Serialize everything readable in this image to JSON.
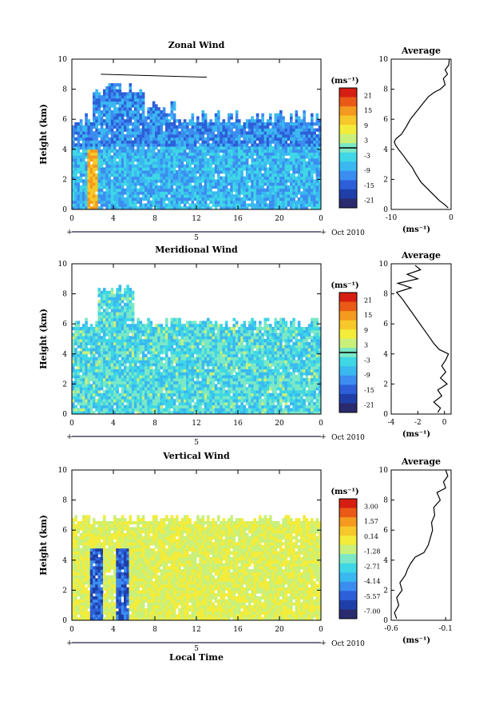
{
  "figure": {
    "x_axis_label": "Local Time",
    "date_label": "Oct 2010",
    "day_label": "5",
    "unit_label": "(ms⁻¹)",
    "y_axis_label": "Height (km)",
    "x_ticks": [
      "0",
      "4",
      "8",
      "12",
      "16",
      "20",
      "0"
    ],
    "y_ticks": [
      "0",
      "2",
      "4",
      "6",
      "8",
      "10"
    ]
  },
  "chart_data": [
    {
      "type": "heatmap",
      "title": "Zonal Wind",
      "ylabel": "Height (km)",
      "xlim": [
        0,
        24
      ],
      "ylim": [
        0,
        10
      ],
      "colorbar": {
        "unit": "(ms⁻¹)",
        "ticks": [
          "21",
          "15",
          "9",
          "3",
          "-3",
          "-9",
          "-15",
          "-21"
        ],
        "range": [
          -24,
          24
        ]
      },
      "profile": {
        "title": "Average",
        "xlabel": "(ms⁻¹)",
        "xlim": [
          -10,
          0
        ],
        "x_ticks": [
          "-10",
          "0"
        ],
        "points": [
          [
            -0.5,
            0.1
          ],
          [
            -1,
            0.3
          ],
          [
            -2,
            0.6
          ],
          [
            -3,
            1.0
          ],
          [
            -4,
            1.4
          ],
          [
            -5,
            1.8
          ],
          [
            -5.8,
            2.3
          ],
          [
            -6.5,
            2.8
          ],
          [
            -7.3,
            3.2
          ],
          [
            -8,
            3.6
          ],
          [
            -8.8,
            4.0
          ],
          [
            -9.3,
            4.3
          ],
          [
            -9.5,
            4.5
          ],
          [
            -9.2,
            4.7
          ],
          [
            -8.3,
            5.0
          ],
          [
            -7.5,
            5.5
          ],
          [
            -6.8,
            6.0
          ],
          [
            -5.8,
            6.5
          ],
          [
            -4.8,
            7.0
          ],
          [
            -3.8,
            7.5
          ],
          [
            -2.8,
            7.8
          ],
          [
            -1.8,
            8.0
          ],
          [
            -1.0,
            8.3
          ],
          [
            -1.3,
            8.7
          ],
          [
            -0.6,
            9.0
          ],
          [
            -1.0,
            9.3
          ],
          [
            -0.4,
            9.6
          ],
          [
            -0.3,
            10
          ]
        ]
      }
    },
    {
      "type": "heatmap",
      "title": "Meridional Wind",
      "ylabel": "Height (km)",
      "xlim": [
        0,
        24
      ],
      "ylim": [
        0,
        10
      ],
      "colorbar": {
        "unit": "(ms⁻¹)",
        "ticks": [
          "21",
          "15",
          "9",
          "3",
          "-3",
          "-9",
          "-15",
          "-21"
        ],
        "range": [
          -24,
          24
        ]
      },
      "profile": {
        "title": "Average",
        "xlabel": "(ms⁻¹)",
        "xlim": [
          -4,
          0.5
        ],
        "x_ticks": [
          "-4",
          "-2",
          "0"
        ],
        "points": [
          [
            -0.5,
            0.1
          ],
          [
            -0.3,
            0.4
          ],
          [
            -0.8,
            0.8
          ],
          [
            -0.2,
            1.2
          ],
          [
            -0.5,
            1.6
          ],
          [
            0.2,
            2.0
          ],
          [
            -0.3,
            2.4
          ],
          [
            0.1,
            2.8
          ],
          [
            -0.2,
            3.2
          ],
          [
            0.1,
            3.6
          ],
          [
            0.3,
            4.0
          ],
          [
            -0.4,
            4.3
          ],
          [
            -0.8,
            4.7
          ],
          [
            -1.2,
            5.2
          ],
          [
            -1.6,
            5.7
          ],
          [
            -2.0,
            6.2
          ],
          [
            -2.4,
            6.7
          ],
          [
            -2.8,
            7.2
          ],
          [
            -3.2,
            7.7
          ],
          [
            -3.6,
            8.1
          ],
          [
            -2.5,
            8.4
          ],
          [
            -3.5,
            8.7
          ],
          [
            -2.0,
            9.0
          ],
          [
            -2.8,
            9.3
          ],
          [
            -1.8,
            9.6
          ],
          [
            -2.2,
            9.9
          ]
        ]
      }
    },
    {
      "type": "heatmap",
      "title": "Vertical Wind",
      "ylabel": "Height (km)",
      "xlabel": "Local Time",
      "xlim": [
        0,
        24
      ],
      "ylim": [
        0,
        10
      ],
      "colorbar": {
        "unit": "(ms⁻¹)",
        "ticks": [
          "3.00",
          "1.57",
          "0.14",
          "-1.28",
          "-2.71",
          "-4.14",
          "-5.57",
          "-7.00"
        ],
        "range": [
          -7,
          3
        ]
      },
      "profile": {
        "title": "Average",
        "xlabel": "(ms⁻¹)",
        "xlim": [
          -0.6,
          -0.05
        ],
        "x_ticks": [
          "-0.6",
          "-0.1"
        ],
        "points": [
          [
            -0.55,
            0.1
          ],
          [
            -0.57,
            0.5
          ],
          [
            -0.53,
            1.0
          ],
          [
            -0.55,
            1.5
          ],
          [
            -0.5,
            2.0
          ],
          [
            -0.52,
            2.5
          ],
          [
            -0.47,
            3.0
          ],
          [
            -0.45,
            3.4
          ],
          [
            -0.42,
            3.8
          ],
          [
            -0.38,
            4.2
          ],
          [
            -0.3,
            4.5
          ],
          [
            -0.26,
            5.0
          ],
          [
            -0.24,
            5.5
          ],
          [
            -0.22,
            6.0
          ],
          [
            -0.23,
            6.5
          ],
          [
            -0.2,
            7.0
          ],
          [
            -0.21,
            7.5
          ],
          [
            -0.15,
            8.0
          ],
          [
            -0.18,
            8.5
          ],
          [
            -0.1,
            8.8
          ],
          [
            -0.12,
            9.2
          ],
          [
            -0.08,
            9.6
          ],
          [
            -0.1,
            10
          ]
        ]
      }
    }
  ]
}
